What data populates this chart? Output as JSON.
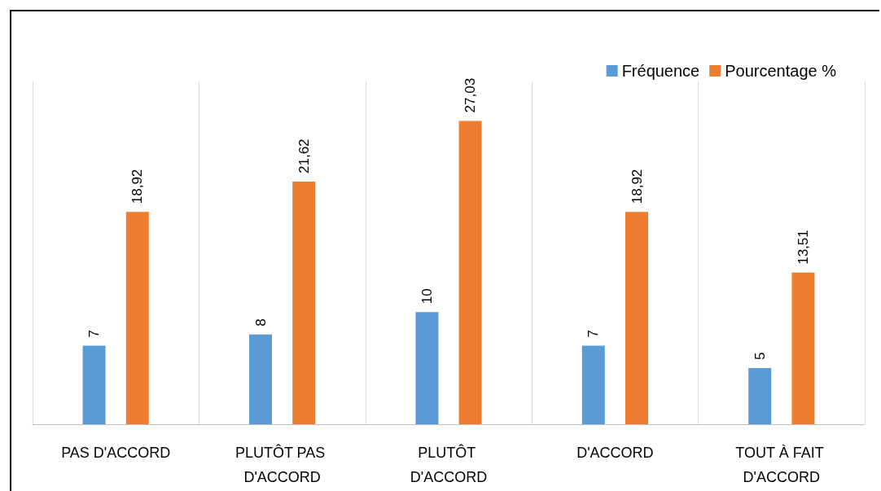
{
  "chart_data": {
    "type": "bar",
    "categories": [
      "PAS D'ACCORD",
      "PLUTÔT PAS D'ACCORD",
      "PLUTÔT D'ACCORD",
      "D'ACCORD",
      "TOUT À FAIT D'ACCORD"
    ],
    "series": [
      {
        "name": "Fréquence",
        "color": "#5b9bd5",
        "values": [
          7,
          8,
          10,
          7,
          5
        ],
        "value_labels": [
          "7",
          "8",
          "10",
          "7",
          "5"
        ]
      },
      {
        "name": "Pourcentage %",
        "color": "#ed7d31",
        "values": [
          18.92,
          21.62,
          27.03,
          18.92,
          13.51
        ],
        "value_labels": [
          "18,92",
          "21,62",
          "27,03",
          "18,92",
          "13,51"
        ]
      }
    ],
    "grid": "x",
    "legend": "top right"
  }
}
